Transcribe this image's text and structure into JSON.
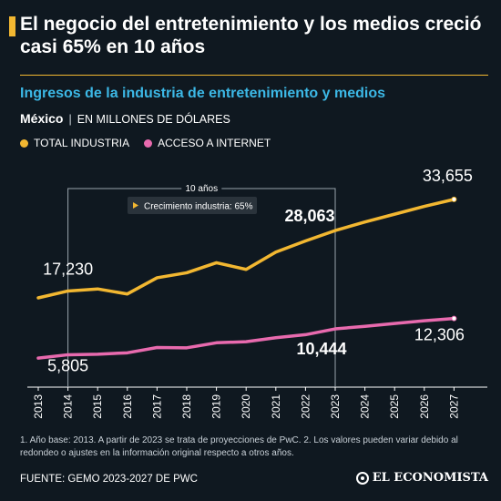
{
  "header": {
    "title": "El negocio del entretenimiento y los medios creció casi 65% en 10 años",
    "subtitle": "Ingresos de la industria de entretenimiento y medios",
    "country": "México",
    "units": "EN MILLONES DE DÓLARES"
  },
  "colors": {
    "background": "#0f1820",
    "accent": "#f2b731",
    "subtitle": "#3cb8e6",
    "total": "#f2b731",
    "internet": "#e86aae"
  },
  "chart_data": {
    "type": "line",
    "x": [
      "2013",
      "2014",
      "2015",
      "2016",
      "2017",
      "2018",
      "2019",
      "2020",
      "2021",
      "2022",
      "2023",
      "2024",
      "2025",
      "2026",
      "2027"
    ],
    "series": [
      {
        "name": "TOTAL INDUSTRIA",
        "color": "#f2b731",
        "values": [
          16000,
          17230,
          17600,
          16700,
          19600,
          20500,
          22300,
          21100,
          24200,
          26200,
          28063,
          29600,
          31000,
          32400,
          33655
        ]
      },
      {
        "name": "ACCESO A INTERNET",
        "color": "#e86aae",
        "values": [
          5200,
          5805,
          5900,
          6150,
          7100,
          7050,
          7950,
          8150,
          8850,
          9400,
          10444,
          10900,
          11400,
          11900,
          12306
        ]
      }
    ],
    "ylim": [
      0,
      40000
    ],
    "legend": "top-left",
    "grid": false,
    "data_labels": [
      {
        "series": 0,
        "index": 1,
        "text": "17,230"
      },
      {
        "series": 0,
        "index": 10,
        "text": "28,063",
        "bold": true
      },
      {
        "series": 0,
        "index": 14,
        "text": "33,655"
      },
      {
        "series": 1,
        "index": 1,
        "text": "5,805"
      },
      {
        "series": 1,
        "index": 10,
        "text": "10,444",
        "bold": true
      },
      {
        "series": 1,
        "index": 14,
        "text": "12,306"
      }
    ],
    "annotation": {
      "bracket_label": "10 años",
      "from_index": 1,
      "to_index": 10,
      "callout": "Crecimiento industria: 65%"
    }
  },
  "footer": {
    "notes": "1. Año base: 2013. A partir de 2023 se trata de proyecciones de PwC. 2. Los valores pueden variar debido al redondeo o ajustes en la información original respecto a otros años.",
    "source": "FUENTE: GEMO 2023-2027 DE PWC",
    "brand": "EL ECONOMISTA"
  }
}
